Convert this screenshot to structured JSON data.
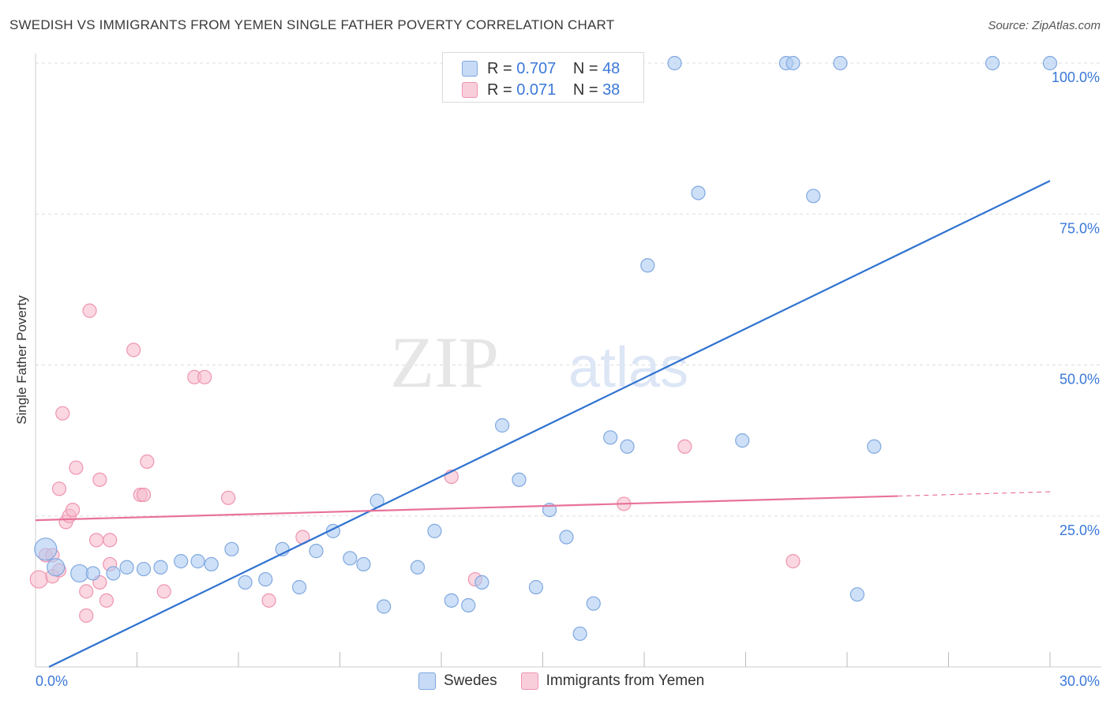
{
  "title": "SWEDISH VS IMMIGRANTS FROM YEMEN SINGLE FATHER POVERTY CORRELATION CHART",
  "source": "Source: ZipAtlas.com",
  "watermark": {
    "zip": "ZIP",
    "atlas": "atlas"
  },
  "legend": {
    "rows": [
      {
        "r_label": "R =",
        "r_value": "0.707",
        "n_label": "N =",
        "n_value": "48"
      },
      {
        "r_label": "R =",
        "r_value": "0.071",
        "n_label": "N =",
        "n_value": "38"
      }
    ]
  },
  "bottom_legend": {
    "swedes": "Swedes",
    "yemen": "Immigrants from Yemen"
  },
  "colors": {
    "blue_fill": "#aecbf2",
    "blue_stroke": "#7fa8e0",
    "blue_line": "#2f72d0",
    "pink_fill": "#f7bccd",
    "pink_stroke": "#ee95b0",
    "pink_line": "#e8729a",
    "tick_text": "#3b78d8",
    "grid": "#dddddd"
  },
  "chart_data": {
    "type": "scatter",
    "title": "SWEDISH VS IMMIGRANTS FROM YEMEN SINGLE FATHER POVERTY CORRELATION CHART",
    "xlabel": "",
    "ylabel": "Single Father Poverty",
    "xlim": [
      0,
      30
    ],
    "ylim": [
      0,
      100
    ],
    "x_tick_labels": [
      "0.0%",
      "30.0%"
    ],
    "y_tick_labels": [
      {
        "value": 25,
        "label": "25.0%"
      },
      {
        "value": 50,
        "label": "50.0%"
      },
      {
        "value": 75,
        "label": "75.0%"
      },
      {
        "value": 100,
        "label": "100.0%"
      }
    ],
    "series": [
      {
        "name": "Swedes",
        "r": 0.707,
        "n": 48,
        "trend": {
          "x": [
            0.4,
            30.0
          ],
          "y": [
            0.0,
            80.5
          ],
          "dashed_from": null
        },
        "points": [
          {
            "x": 0.3,
            "y": 19.5,
            "s": 3
          },
          {
            "x": 0.6,
            "y": 16.5,
            "s": 2
          },
          {
            "x": 1.3,
            "y": 15.5,
            "s": 2
          },
          {
            "x": 1.7,
            "y": 15.5,
            "s": 1
          },
          {
            "x": 2.3,
            "y": 15.5,
            "s": 1
          },
          {
            "x": 2.7,
            "y": 16.5,
            "s": 1
          },
          {
            "x": 3.2,
            "y": 16.2,
            "s": 1
          },
          {
            "x": 3.7,
            "y": 16.5,
            "s": 1
          },
          {
            "x": 4.3,
            "y": 17.5,
            "s": 1
          },
          {
            "x": 4.8,
            "y": 17.5,
            "s": 1
          },
          {
            "x": 5.2,
            "y": 17.0,
            "s": 1
          },
          {
            "x": 5.8,
            "y": 19.5,
            "s": 1
          },
          {
            "x": 6.2,
            "y": 14.0,
            "s": 1
          },
          {
            "x": 6.8,
            "y": 14.5,
            "s": 1
          },
          {
            "x": 7.3,
            "y": 19.5,
            "s": 1
          },
          {
            "x": 7.8,
            "y": 13.2,
            "s": 1
          },
          {
            "x": 8.3,
            "y": 19.2,
            "s": 1
          },
          {
            "x": 8.8,
            "y": 22.5,
            "s": 1
          },
          {
            "x": 9.3,
            "y": 18.0,
            "s": 1
          },
          {
            "x": 9.7,
            "y": 17.0,
            "s": 1
          },
          {
            "x": 10.1,
            "y": 27.5,
            "s": 1
          },
          {
            "x": 10.3,
            "y": 10.0,
            "s": 1
          },
          {
            "x": 11.3,
            "y": 16.5,
            "s": 1
          },
          {
            "x": 11.8,
            "y": 22.5,
            "s": 1
          },
          {
            "x": 12.3,
            "y": 11.0,
            "s": 1
          },
          {
            "x": 12.8,
            "y": 10.2,
            "s": 1
          },
          {
            "x": 13.2,
            "y": 14.0,
            "s": 1
          },
          {
            "x": 13.8,
            "y": 40.0,
            "s": 1
          },
          {
            "x": 14.3,
            "y": 31.0,
            "s": 1
          },
          {
            "x": 14.8,
            "y": 13.2,
            "s": 1
          },
          {
            "x": 15.2,
            "y": 26.0,
            "s": 1
          },
          {
            "x": 15.7,
            "y": 21.5,
            "s": 1
          },
          {
            "x": 16.1,
            "y": 5.5,
            "s": 1
          },
          {
            "x": 16.5,
            "y": 10.5,
            "s": 1
          },
          {
            "x": 17.0,
            "y": 38.0,
            "s": 1
          },
          {
            "x": 17.5,
            "y": 36.5,
            "s": 1
          },
          {
            "x": 18.1,
            "y": 66.5,
            "s": 1
          },
          {
            "x": 18.9,
            "y": 100.0,
            "s": 1
          },
          {
            "x": 19.6,
            "y": 78.5,
            "s": 1
          },
          {
            "x": 20.9,
            "y": 37.5,
            "s": 1
          },
          {
            "x": 22.2,
            "y": 100.0,
            "s": 1
          },
          {
            "x": 22.4,
            "y": 100.0,
            "s": 1
          },
          {
            "x": 23.0,
            "y": 78.0,
            "s": 1
          },
          {
            "x": 23.8,
            "y": 100.0,
            "s": 1
          },
          {
            "x": 24.3,
            "y": 12.0,
            "s": 1
          },
          {
            "x": 24.8,
            "y": 36.5,
            "s": 1
          },
          {
            "x": 28.3,
            "y": 100.0,
            "s": 1
          },
          {
            "x": 30.0,
            "y": 100.0,
            "s": 1
          }
        ]
      },
      {
        "name": "Immigrants from Yemen",
        "r": 0.071,
        "n": 38,
        "trend": {
          "x": [
            0.0,
            30.0
          ],
          "y": [
            24.3,
            29.0
          ],
          "dashed_from": 25.5
        },
        "points": [
          {
            "x": 0.1,
            "y": 14.5,
            "s": 2
          },
          {
            "x": 0.3,
            "y": 18.5,
            "s": 1
          },
          {
            "x": 0.5,
            "y": 18.5,
            "s": 1
          },
          {
            "x": 0.5,
            "y": 15.0,
            "s": 1
          },
          {
            "x": 0.7,
            "y": 16.0,
            "s": 1
          },
          {
            "x": 0.7,
            "y": 29.5,
            "s": 1
          },
          {
            "x": 0.8,
            "y": 42.0,
            "s": 1
          },
          {
            "x": 0.9,
            "y": 24.0,
            "s": 1
          },
          {
            "x": 1.0,
            "y": 25.0,
            "s": 1
          },
          {
            "x": 1.1,
            "y": 26.0,
            "s": 1
          },
          {
            "x": 1.2,
            "y": 33.0,
            "s": 1
          },
          {
            "x": 1.5,
            "y": 8.5,
            "s": 1
          },
          {
            "x": 1.5,
            "y": 12.5,
            "s": 1
          },
          {
            "x": 1.6,
            "y": 59.0,
            "s": 1
          },
          {
            "x": 1.8,
            "y": 21.0,
            "s": 1
          },
          {
            "x": 1.9,
            "y": 14.0,
            "s": 1
          },
          {
            "x": 1.9,
            "y": 31.0,
            "s": 1
          },
          {
            "x": 2.1,
            "y": 11.0,
            "s": 1
          },
          {
            "x": 2.2,
            "y": 21.0,
            "s": 1
          },
          {
            "x": 2.2,
            "y": 17.0,
            "s": 1
          },
          {
            "x": 2.9,
            "y": 52.5,
            "s": 1
          },
          {
            "x": 3.1,
            "y": 28.5,
            "s": 1
          },
          {
            "x": 3.2,
            "y": 28.5,
            "s": 1
          },
          {
            "x": 3.3,
            "y": 34.0,
            "s": 1
          },
          {
            "x": 3.8,
            "y": 12.5,
            "s": 1
          },
          {
            "x": 4.7,
            "y": 48.0,
            "s": 1
          },
          {
            "x": 5.0,
            "y": 48.0,
            "s": 1
          },
          {
            "x": 5.7,
            "y": 28.0,
            "s": 1
          },
          {
            "x": 6.9,
            "y": 11.0,
            "s": 1
          },
          {
            "x": 7.9,
            "y": 21.5,
            "s": 1
          },
          {
            "x": 12.3,
            "y": 31.5,
            "s": 1
          },
          {
            "x": 13.0,
            "y": 14.5,
            "s": 1
          },
          {
            "x": 17.4,
            "y": 27.0,
            "s": 1
          },
          {
            "x": 19.2,
            "y": 36.5,
            "s": 1
          },
          {
            "x": 22.4,
            "y": 17.5,
            "s": 1
          }
        ]
      }
    ]
  }
}
